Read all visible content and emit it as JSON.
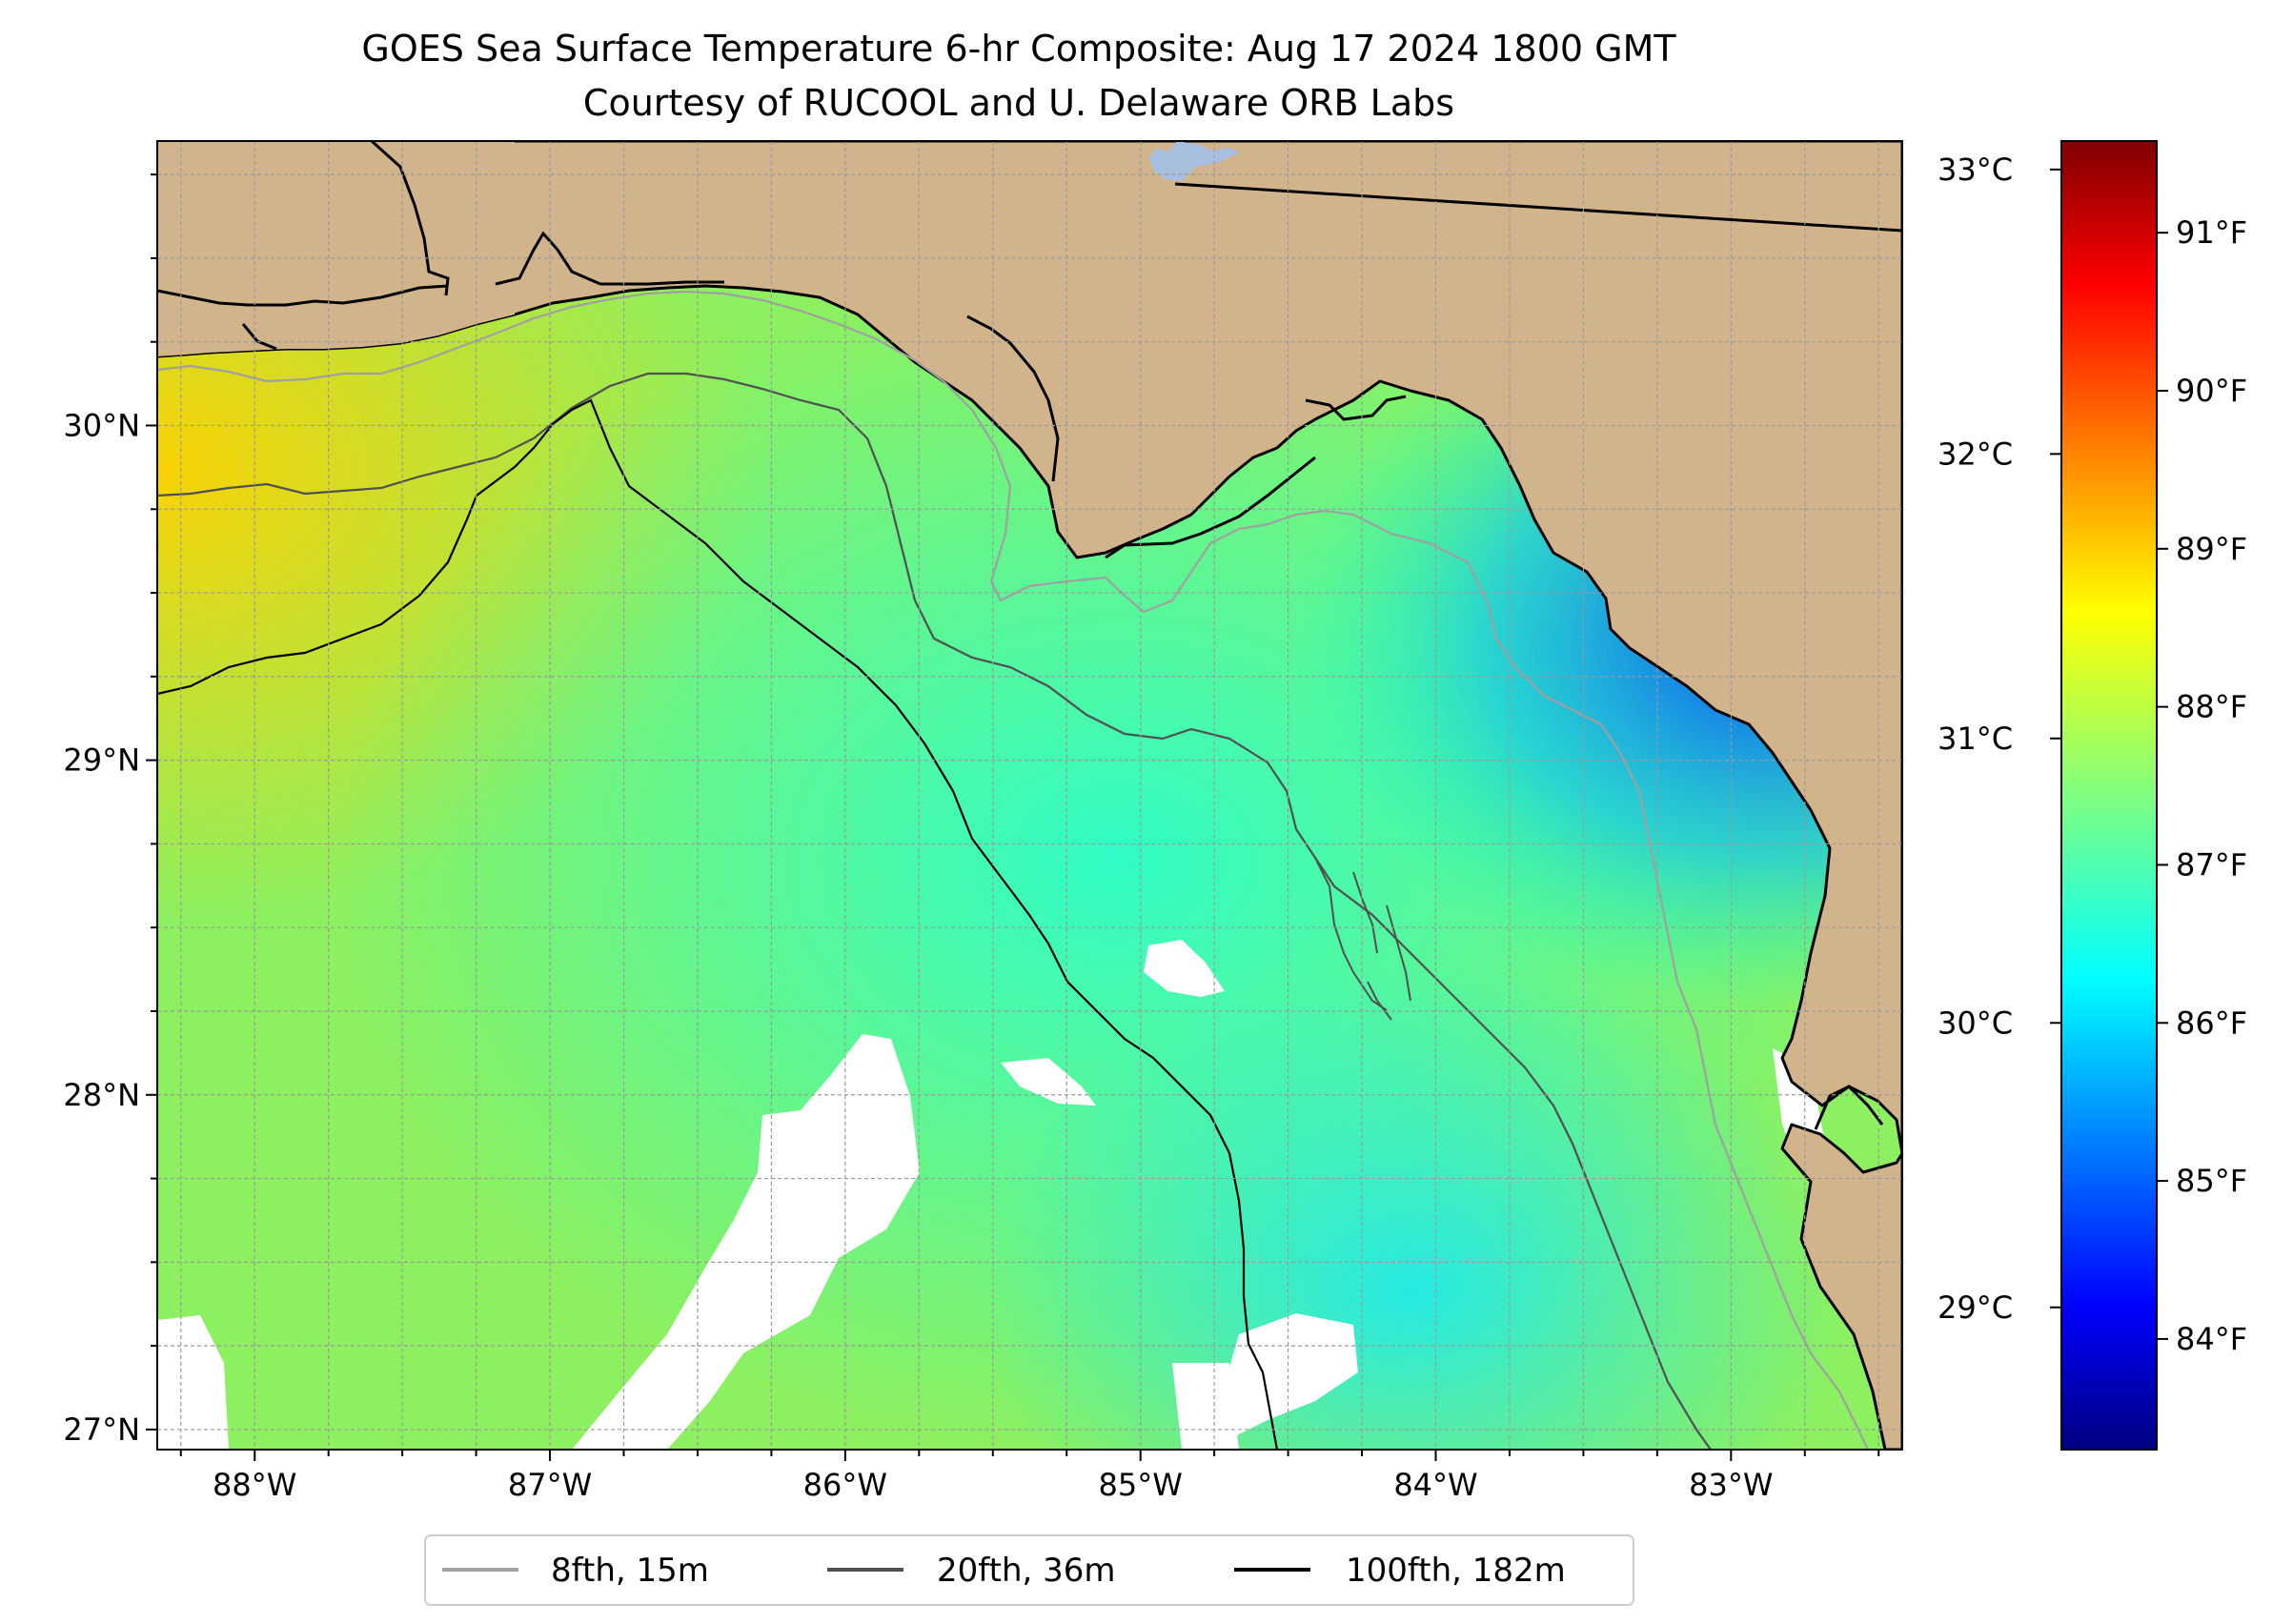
{
  "title": {
    "line1": "GOES Sea Surface Temperature 6-hr Composite: Aug 17 2024 1800 GMT",
    "line2": "Courtesy of RUCOOL and U. Delaware ORB Labs"
  },
  "colors": {
    "land": "#d2b48c",
    "coastline": "#000000",
    "no_data": "#ffffff",
    "lake": "#a8bfdf",
    "iso_8fth": "#a0a0a0",
    "iso_20fth": "#505050",
    "iso_100fth": "#000000",
    "grid": "#9a9a9a"
  },
  "map": {
    "lon_range": [
      -88.33,
      -82.42
    ],
    "lat_range": [
      26.94,
      30.85
    ],
    "lon_ticks": [
      "88°W",
      "87°W",
      "86°W",
      "85°W",
      "84°W",
      "83°W"
    ],
    "lon_tick_values": [
      -88,
      -87,
      -86,
      -85,
      -84,
      -83
    ],
    "lat_ticks": [
      "27°N",
      "28°N",
      "29°N",
      "30°N"
    ],
    "lat_tick_values": [
      27,
      28,
      29,
      30
    ],
    "gridlines": true,
    "gridline_spacing_deg": 0.25
  },
  "colorbar": {
    "celsius_ticks": [
      "29°C",
      "30°C",
      "31°C",
      "32°C",
      "33°C"
    ],
    "celsius_values": [
      29,
      30,
      31,
      32,
      33
    ],
    "fahrenheit_ticks": [
      "84°F",
      "85°F",
      "86°F",
      "87°F",
      "88°F",
      "89°F",
      "90°F",
      "91°F"
    ],
    "fahrenheit_values": [
      84,
      85,
      86,
      87,
      88,
      89,
      90,
      91
    ],
    "range_c": [
      28.5,
      33.1
    ],
    "colormap": "jet"
  },
  "legend": {
    "placement": "bottom-center",
    "items": [
      {
        "label": "8fth, 15m",
        "color": "#a0a0a0"
      },
      {
        "label": "20fth, 36m",
        "color": "#505050"
      },
      {
        "label": "100fth, 182m",
        "color": "#000000"
      }
    ]
  }
}
